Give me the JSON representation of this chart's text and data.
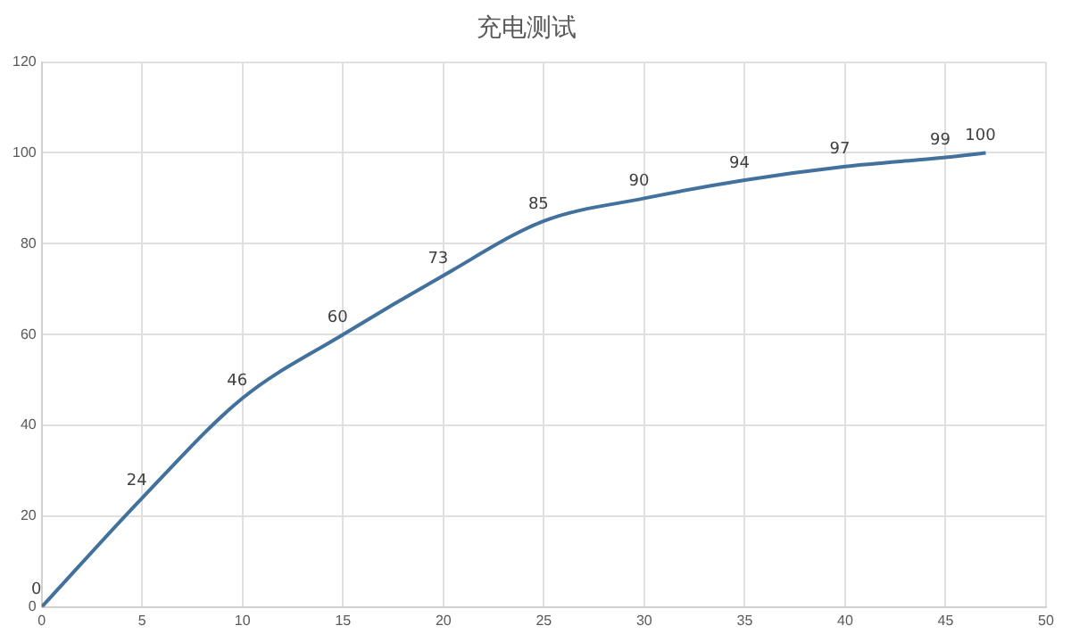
{
  "chart_data": {
    "type": "line",
    "title": "充电测试",
    "x": [
      0,
      5,
      10,
      15,
      20,
      25,
      30,
      35,
      40,
      45,
      47
    ],
    "series": [
      {
        "color": "#41719c",
        "values": [
          0,
          24,
          46,
          60,
          73,
          85,
          90,
          94,
          97,
          99,
          100
        ]
      }
    ],
    "xlim": [
      0,
      50
    ],
    "xticks": [
      0,
      5,
      10,
      15,
      20,
      25,
      30,
      35,
      40,
      45,
      50
    ],
    "ylim": [
      0,
      120
    ],
    "yticks": [
      0,
      20,
      40,
      60,
      80,
      100,
      120
    ],
    "grid": true,
    "legend": false,
    "marker": "none",
    "line_style": "solid",
    "data_labels": true
  }
}
